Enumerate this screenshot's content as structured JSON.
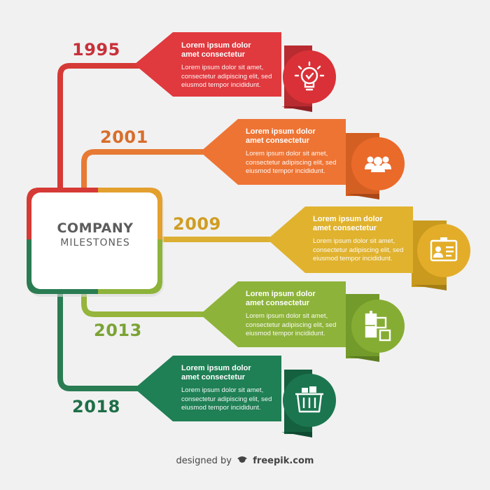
{
  "center": {
    "title": "COMPANY",
    "subtitle": "MILESTONES"
  },
  "milestones": [
    {
      "year": "1995",
      "heading_line1": "Lorem ipsum dolor",
      "heading_line2": "amet consectetur",
      "body_line1": "Lorem ipsum dolor sit amet,",
      "body_line2": "consectetur adipiscing elit, sed",
      "body_line3": "eiusmod tempor incididunt.",
      "icon": "lightbulb-icon",
      "color": "#e0393e"
    },
    {
      "year": "2001",
      "heading_line1": "Lorem ipsum dolor",
      "heading_line2": "amet consectetur",
      "body_line1": "Lorem ipsum dolor sit amet,",
      "body_line2": "consectetur adipiscing elit, sed",
      "body_line3": "eiusmod tempor incididunt.",
      "icon": "team-icon",
      "color": "#ee7434"
    },
    {
      "year": "2009",
      "heading_line1": "Lorem ipsum dolor",
      "heading_line2": "amet consectetur",
      "body_line1": "Lorem ipsum dolor sit amet,",
      "body_line2": "consectetur adipiscing elit, sed",
      "body_line3": "eiusmod tempor incididunt.",
      "icon": "id-card-icon",
      "color": "#e0b22e"
    },
    {
      "year": "2013",
      "heading_line1": "Lorem ipsum dolor",
      "heading_line2": "amet consectetur",
      "body_line1": "Lorem ipsum dolor sit amet,",
      "body_line2": "consectetur adipiscing elit, sed",
      "body_line3": "eiusmod tempor incididunt.",
      "icon": "puzzle-icon",
      "color": "#8db33a"
    },
    {
      "year": "2018",
      "heading_line1": "Lorem ipsum dolor",
      "heading_line2": "amet consectetur",
      "body_line1": "Lorem ipsum dolor sit amet,",
      "body_line2": "consectetur adipiscing elit, sed",
      "body_line3": "eiusmod tempor incididunt.",
      "icon": "basket-icon",
      "color": "#1f7f55"
    }
  ],
  "credit": {
    "prefix": "designed by",
    "brand": "freepik.com"
  }
}
